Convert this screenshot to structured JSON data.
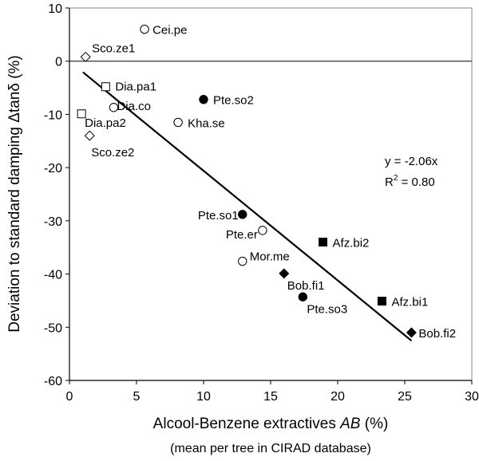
{
  "chart_data": {
    "type": "scatter",
    "xlabel_main": "Alcool-Benzene extractives ",
    "xlabel_italic": "AB",
    "xlabel_unit": " (%)",
    "xlabel_sub": "(mean per tree in CIRAD database)",
    "ylabel": "Deviation to standard damping Δtanδ  (%)",
    "xlim": [
      0,
      30
    ],
    "ylim": [
      -60,
      10
    ],
    "xticks": [
      "0",
      "5",
      "10",
      "15",
      "20",
      "25",
      "30"
    ],
    "yticks": [
      "10",
      "0",
      "-10",
      "-20",
      "-30",
      "-40",
      "-50",
      "-60"
    ],
    "equation": "y = -2.06x",
    "r2_prefix": "R",
    "r2_sup": "2",
    "r2_suffix": " = 0.80",
    "fit": {
      "slope": -2.06,
      "x_start": 1,
      "x_end": 25.5
    },
    "points": [
      {
        "label": "Cei.pe",
        "x": 5.6,
        "y": 6.0,
        "marker": "circle-open"
      },
      {
        "label": "Sco.ze1",
        "x": 1.2,
        "y": 0.8,
        "marker": "diamond-open"
      },
      {
        "label": "Dia.pa1",
        "x": 2.7,
        "y": -4.8,
        "marker": "square-open"
      },
      {
        "label": "Dia.co",
        "x": 3.3,
        "y": -8.7,
        "marker": "circle-open"
      },
      {
        "label": "Pte.so2",
        "x": 10.0,
        "y": -7.2,
        "marker": "circle-filled"
      },
      {
        "label": "Dia.pa2",
        "x": 0.9,
        "y": -9.9,
        "marker": "square-open"
      },
      {
        "label": "Kha.se",
        "x": 8.1,
        "y": -11.5,
        "marker": "circle-open"
      },
      {
        "label": "Sco.ze2",
        "x": 1.5,
        "y": -14.0,
        "marker": "diamond-open"
      },
      {
        "label": "Pte.so1",
        "x": 12.9,
        "y": -28.8,
        "marker": "circle-filled"
      },
      {
        "label": "Pte.er",
        "x": 14.4,
        "y": -31.8,
        "marker": "circle-open"
      },
      {
        "label": "Afz.bi2",
        "x": 18.9,
        "y": -34.0,
        "marker": "square-filled"
      },
      {
        "label": "Mor.me",
        "x": 12.9,
        "y": -37.6,
        "marker": "circle-open"
      },
      {
        "label": "Bob.fi1",
        "x": 16.0,
        "y": -39.9,
        "marker": "diamond-filled"
      },
      {
        "label": "Pte.so3",
        "x": 17.4,
        "y": -44.3,
        "marker": "circle-filled"
      },
      {
        "label": "Afz.bi1",
        "x": 23.3,
        "y": -45.1,
        "marker": "square-filled"
      },
      {
        "label": "Bob.fi2",
        "x": 25.5,
        "y": -51.0,
        "marker": "diamond-filled"
      }
    ]
  }
}
